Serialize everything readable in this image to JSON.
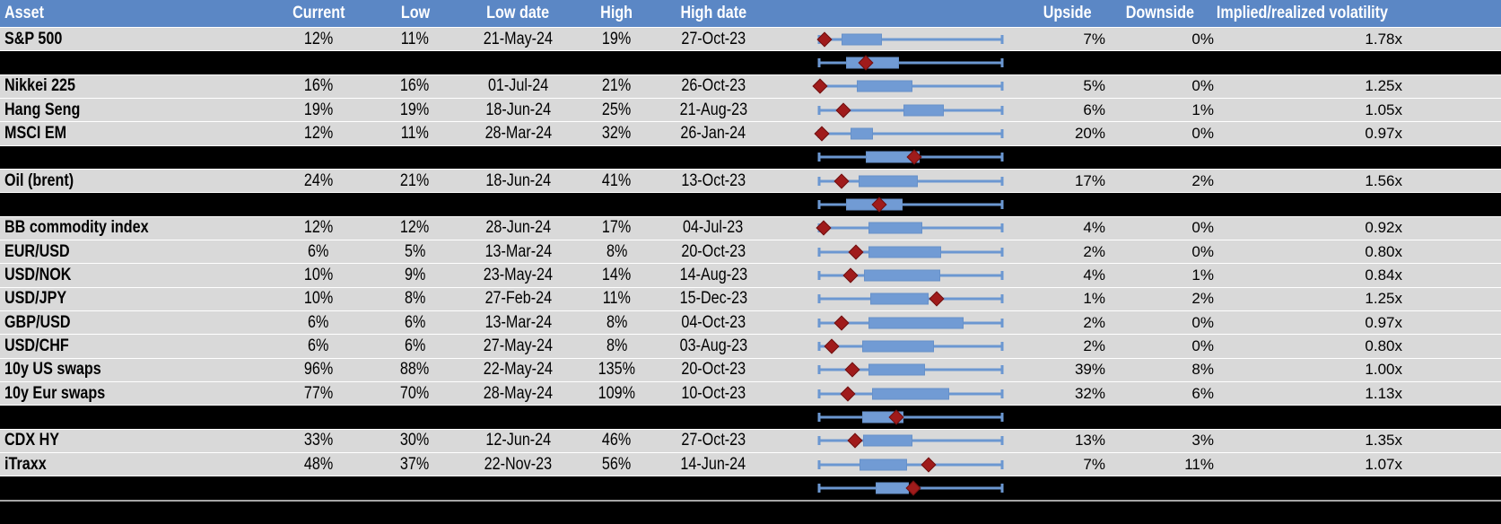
{
  "colors": {
    "header_bg": "#5b87c5",
    "header_text": "#ffffff",
    "row_bg": "#d9d9d9",
    "separator_bg": "#000000",
    "grid_line": "#ffffff",
    "footer_line": "#a6a6a6",
    "body_text": "#000000",
    "box_fill": "#719bd4",
    "whisker": "#6b97d1",
    "marker_fill": "#a01b1b",
    "marker_edge": "#6e1010"
  },
  "header": {
    "columns": [
      {
        "id": "asset",
        "label": "Asset"
      },
      {
        "id": "current",
        "label": "Current"
      },
      {
        "id": "low",
        "label": "Low"
      },
      {
        "id": "low_date",
        "label": "Low date"
      },
      {
        "id": "high",
        "label": "High"
      },
      {
        "id": "high_date",
        "label": "High date"
      },
      {
        "id": "plot",
        "label": ""
      },
      {
        "id": "upside",
        "label": "Upside"
      },
      {
        "id": "downside",
        "label": "Downside"
      },
      {
        "id": "vol",
        "label": "Implied/realized volatility"
      }
    ]
  },
  "rows": [
    {
      "type": "data",
      "asset": "S&P 500",
      "current": "12%",
      "low": "11%",
      "low_date": "21-May-24",
      "high": "19%",
      "high_date": "27-Oct-23",
      "upside": "7%",
      "downside": "0%",
      "vol": "1.78x",
      "plot": {
        "w_lo": 3.6,
        "b_lo": 15.0,
        "b_hi": 35.5,
        "w_hi": 96.5,
        "d": 6.4
      }
    },
    {
      "type": "sep",
      "plot": {
        "w_lo": 3.6,
        "b_lo": 17.3,
        "b_hi": 44.1,
        "w_hi": 96.5,
        "d": 27.3
      }
    },
    {
      "type": "data",
      "asset": "Nikkei 225",
      "current": "16%",
      "low": "16%",
      "low_date": "01-Jul-24",
      "high": "21%",
      "high_date": "26-Oct-23",
      "upside": "5%",
      "downside": "0%",
      "vol": "1.25x",
      "plot": {
        "w_lo": 3.6,
        "b_lo": 22.7,
        "b_hi": 50.9,
        "w_hi": 96.5,
        "d": 3.9
      }
    },
    {
      "type": "data",
      "asset": "Hang Seng",
      "current": "19%",
      "low": "19%",
      "low_date": "18-Jun-24",
      "high": "25%",
      "high_date": "21-Aug-23",
      "upside": "6%",
      "downside": "1%",
      "vol": "1.05x",
      "plot": {
        "w_lo": 3.6,
        "b_lo": 46.4,
        "b_hi": 66.8,
        "w_hi": 96.5,
        "d": 15.9
      }
    },
    {
      "type": "data",
      "asset": "MSCI EM",
      "current": "12%",
      "low": "11%",
      "low_date": "28-Mar-24",
      "high": "32%",
      "high_date": "26-Jan-24",
      "upside": "20%",
      "downside": "0%",
      "vol": "0.97x",
      "plot": {
        "w_lo": 3.6,
        "b_lo": 19.5,
        "b_hi": 30.9,
        "w_hi": 96.5,
        "d": 5.0
      }
    },
    {
      "type": "sep",
      "plot": {
        "w_lo": 3.6,
        "b_lo": 27.3,
        "b_hi": 54.5,
        "w_hi": 96.5,
        "d": 51.8
      }
    },
    {
      "type": "data",
      "asset": "Oil (brent)",
      "current": "24%",
      "low": "21%",
      "low_date": "18-Jun-24",
      "high": "41%",
      "high_date": "13-Oct-23",
      "upside": "17%",
      "downside": "2%",
      "vol": "1.56x",
      "plot": {
        "w_lo": 3.6,
        "b_lo": 23.6,
        "b_hi": 53.6,
        "w_hi": 96.5,
        "d": 15.0
      }
    },
    {
      "type": "sep",
      "plot": {
        "w_lo": 3.6,
        "b_lo": 17.3,
        "b_hi": 45.9,
        "w_hi": 96.5,
        "d": 34.1
      }
    },
    {
      "type": "data",
      "asset": "BB commodity index",
      "current": "12%",
      "low": "12%",
      "low_date": "28-Jun-24",
      "high": "17%",
      "high_date": "04-Jul-23",
      "upside": "4%",
      "downside": "0%",
      "vol": "0.92x",
      "plot": {
        "w_lo": 3.6,
        "b_lo": 28.6,
        "b_hi": 55.9,
        "w_hi": 96.5,
        "d": 5.9
      }
    },
    {
      "type": "data",
      "asset": "EUR/USD",
      "current": "6%",
      "low": "5%",
      "low_date": "13-Mar-24",
      "high": "8%",
      "high_date": "20-Oct-23",
      "upside": "2%",
      "downside": "0%",
      "vol": "0.80x",
      "plot": {
        "w_lo": 3.6,
        "b_lo": 28.6,
        "b_hi": 65.5,
        "w_hi": 96.5,
        "d": 22.3
      }
    },
    {
      "type": "data",
      "asset": "USD/NOK",
      "current": "10%",
      "low": "9%",
      "low_date": "23-May-24",
      "high": "14%",
      "high_date": "14-Aug-23",
      "upside": "4%",
      "downside": "1%",
      "vol": "0.84x",
      "plot": {
        "w_lo": 3.6,
        "b_lo": 26.4,
        "b_hi": 65.0,
        "w_hi": 96.5,
        "d": 19.5
      }
    },
    {
      "type": "data",
      "asset": "USD/JPY",
      "current": "10%",
      "low": "8%",
      "low_date": "27-Feb-24",
      "high": "11%",
      "high_date": "15-Dec-23",
      "upside": "1%",
      "downside": "2%",
      "vol": "1.25x",
      "plot": {
        "w_lo": 3.6,
        "b_lo": 29.5,
        "b_hi": 59.1,
        "w_hi": 96.5,
        "d": 63.2
      }
    },
    {
      "type": "data",
      "asset": "GBP/USD",
      "current": "6%",
      "low": "6%",
      "low_date": "13-Mar-24",
      "high": "8%",
      "high_date": "04-Oct-23",
      "upside": "2%",
      "downside": "0%",
      "vol": "0.97x",
      "plot": {
        "w_lo": 3.6,
        "b_lo": 28.6,
        "b_hi": 76.8,
        "w_hi": 96.5,
        "d": 15.0
      }
    },
    {
      "type": "data",
      "asset": "USD/CHF",
      "current": "6%",
      "low": "6%",
      "low_date": "27-May-24",
      "high": "8%",
      "high_date": "03-Aug-23",
      "upside": "2%",
      "downside": "0%",
      "vol": "0.80x",
      "plot": {
        "w_lo": 3.6,
        "b_lo": 25.5,
        "b_hi": 61.8,
        "w_hi": 96.5,
        "d": 10.0
      }
    },
    {
      "type": "data",
      "asset": "10y US swaps",
      "current": "96%",
      "low": "88%",
      "low_date": "22-May-24",
      "high": "135%",
      "high_date": "20-Oct-23",
      "upside": "39%",
      "downside": "8%",
      "vol": "1.00x",
      "plot": {
        "w_lo": 3.6,
        "b_lo": 28.6,
        "b_hi": 57.3,
        "w_hi": 96.5,
        "d": 20.5
      }
    },
    {
      "type": "data",
      "asset": "10y Eur swaps",
      "current": "77%",
      "low": "70%",
      "low_date": "28-May-24",
      "high": "109%",
      "high_date": "10-Oct-23",
      "upside": "32%",
      "downside": "6%",
      "vol": "1.13x",
      "plot": {
        "w_lo": 3.6,
        "b_lo": 30.5,
        "b_hi": 69.5,
        "w_hi": 96.5,
        "d": 18.2
      }
    },
    {
      "type": "sep",
      "plot": {
        "w_lo": 3.6,
        "b_lo": 25.5,
        "b_hi": 46.4,
        "w_hi": 96.5,
        "d": 42.7
      }
    },
    {
      "type": "data",
      "asset": "CDX HY",
      "current": "33%",
      "low": "30%",
      "low_date": "12-Jun-24",
      "high": "46%",
      "high_date": "27-Oct-23",
      "upside": "13%",
      "downside": "3%",
      "vol": "1.35x",
      "plot": {
        "w_lo": 3.6,
        "b_lo": 25.9,
        "b_hi": 50.9,
        "w_hi": 96.5,
        "d": 21.8
      }
    },
    {
      "type": "data",
      "asset": "iTraxx",
      "current": "48%",
      "low": "37%",
      "low_date": "22-Nov-23",
      "high": "56%",
      "high_date": "14-Jun-24",
      "upside": "7%",
      "downside": "11%",
      "vol": "1.07x",
      "plot": {
        "w_lo": 3.6,
        "b_lo": 24.1,
        "b_hi": 48.2,
        "w_hi": 96.5,
        "d": 59.1
      }
    },
    {
      "type": "sep",
      "plot": {
        "w_lo": 3.6,
        "b_lo": 32.3,
        "b_hi": 49.1,
        "w_hi": 96.5,
        "d": 51.4
      }
    },
    {
      "type": "footer"
    }
  ],
  "chart_data": {
    "type": "table",
    "title": "Implied volatility: current level vs 1-year range with box-whisker distribution",
    "columns": [
      "Asset",
      "Current",
      "Low",
      "Low date",
      "High",
      "High date",
      "Upside",
      "Downside",
      "Implied/realized volatility"
    ],
    "rows": [
      [
        "S&P 500",
        "12%",
        "11%",
        "21-May-24",
        "19%",
        "27-Oct-23",
        "7%",
        "0%",
        "1.78x"
      ],
      [
        "Nikkei 225",
        "16%",
        "16%",
        "01-Jul-24",
        "21%",
        "26-Oct-23",
        "5%",
        "0%",
        "1.25x"
      ],
      [
        "Hang Seng",
        "19%",
        "19%",
        "18-Jun-24",
        "25%",
        "21-Aug-23",
        "6%",
        "1%",
        "1.05x"
      ],
      [
        "MSCI EM",
        "12%",
        "11%",
        "28-Mar-24",
        "32%",
        "26-Jan-24",
        "20%",
        "0%",
        "0.97x"
      ],
      [
        "Oil (brent)",
        "24%",
        "21%",
        "18-Jun-24",
        "41%",
        "13-Oct-23",
        "17%",
        "2%",
        "1.56x"
      ],
      [
        "BB commodity index",
        "12%",
        "12%",
        "28-Jun-24",
        "17%",
        "04-Jul-23",
        "4%",
        "0%",
        "0.92x"
      ],
      [
        "EUR/USD",
        "6%",
        "5%",
        "13-Mar-24",
        "8%",
        "20-Oct-23",
        "2%",
        "0%",
        "0.80x"
      ],
      [
        "USD/NOK",
        "10%",
        "9%",
        "23-May-24",
        "14%",
        "14-Aug-23",
        "4%",
        "1%",
        "0.84x"
      ],
      [
        "USD/JPY",
        "10%",
        "8%",
        "27-Feb-24",
        "11%",
        "15-Dec-23",
        "1%",
        "2%",
        "1.25x"
      ],
      [
        "GBP/USD",
        "6%",
        "6%",
        "13-Mar-24",
        "8%",
        "04-Oct-23",
        "2%",
        "0%",
        "0.97x"
      ],
      [
        "USD/CHF",
        "6%",
        "6%",
        "27-May-24",
        "8%",
        "03-Aug-23",
        "2%",
        "0%",
        "0.80x"
      ],
      [
        "10y US swaps",
        "96%",
        "88%",
        "22-May-24",
        "135%",
        "20-Oct-23",
        "39%",
        "8%",
        "1.00x"
      ],
      [
        "10y Eur swaps",
        "77%",
        "70%",
        "28-May-24",
        "109%",
        "10-Oct-23",
        "32%",
        "6%",
        "1.13x"
      ],
      [
        "CDX HY",
        "33%",
        "30%",
        "12-Jun-24",
        "46%",
        "27-Oct-23",
        "13%",
        "3%",
        "1.35x"
      ],
      [
        "iTraxx",
        "48%",
        "37%",
        "22-Nov-23",
        "56%",
        "14-Jun-24",
        "7%",
        "11%",
        "1.07x"
      ]
    ],
    "embedded_boxplots": {
      "units": "fraction_of_row_track",
      "series": [
        {
          "label": "S&P 500",
          "whisker": [
            0.036,
            0.965
          ],
          "box": [
            0.15,
            0.355
          ],
          "marker": 0.064
        },
        {
          "label": "",
          "whisker": [
            0.036,
            0.965
          ],
          "box": [
            0.173,
            0.441
          ],
          "marker": 0.273
        },
        {
          "label": "Nikkei 225",
          "whisker": [
            0.036,
            0.965
          ],
          "box": [
            0.227,
            0.509
          ],
          "marker": 0.039
        },
        {
          "label": "Hang Seng",
          "whisker": [
            0.036,
            0.965
          ],
          "box": [
            0.464,
            0.668
          ],
          "marker": 0.159
        },
        {
          "label": "MSCI EM",
          "whisker": [
            0.036,
            0.965
          ],
          "box": [
            0.195,
            0.309
          ],
          "marker": 0.05
        },
        {
          "label": "",
          "whisker": [
            0.036,
            0.965
          ],
          "box": [
            0.273,
            0.545
          ],
          "marker": 0.518
        },
        {
          "label": "Oil (brent)",
          "whisker": [
            0.036,
            0.965
          ],
          "box": [
            0.236,
            0.536
          ],
          "marker": 0.15
        },
        {
          "label": "",
          "whisker": [
            0.036,
            0.965
          ],
          "box": [
            0.173,
            0.459
          ],
          "marker": 0.341
        },
        {
          "label": "BB commodity index",
          "whisker": [
            0.036,
            0.965
          ],
          "box": [
            0.286,
            0.559
          ],
          "marker": 0.059
        },
        {
          "label": "EUR/USD",
          "whisker": [
            0.036,
            0.965
          ],
          "box": [
            0.286,
            0.655
          ],
          "marker": 0.223
        },
        {
          "label": "USD/NOK",
          "whisker": [
            0.036,
            0.965
          ],
          "box": [
            0.264,
            0.65
          ],
          "marker": 0.195
        },
        {
          "label": "USD/JPY",
          "whisker": [
            0.036,
            0.965
          ],
          "box": [
            0.295,
            0.591
          ],
          "marker": 0.632
        },
        {
          "label": "GBP/USD",
          "whisker": [
            0.036,
            0.965
          ],
          "box": [
            0.286,
            0.768
          ],
          "marker": 0.15
        },
        {
          "label": "USD/CHF",
          "whisker": [
            0.036,
            0.965
          ],
          "box": [
            0.255,
            0.618
          ],
          "marker": 0.1
        },
        {
          "label": "10y US swaps",
          "whisker": [
            0.036,
            0.965
          ],
          "box": [
            0.286,
            0.573
          ],
          "marker": 0.205
        },
        {
          "label": "10y Eur swaps",
          "whisker": [
            0.036,
            0.965
          ],
          "box": [
            0.305,
            0.695
          ],
          "marker": 0.182
        },
        {
          "label": "",
          "whisker": [
            0.036,
            0.965
          ],
          "box": [
            0.255,
            0.464
          ],
          "marker": 0.427
        },
        {
          "label": "CDX HY",
          "whisker": [
            0.036,
            0.965
          ],
          "box": [
            0.259,
            0.509
          ],
          "marker": 0.218
        },
        {
          "label": "iTraxx",
          "whisker": [
            0.036,
            0.965
          ],
          "box": [
            0.241,
            0.482
          ],
          "marker": 0.591
        },
        {
          "label": "",
          "whisker": [
            0.036,
            0.965
          ],
          "box": [
            0.323,
            0.491
          ],
          "marker": 0.514
        }
      ]
    }
  }
}
